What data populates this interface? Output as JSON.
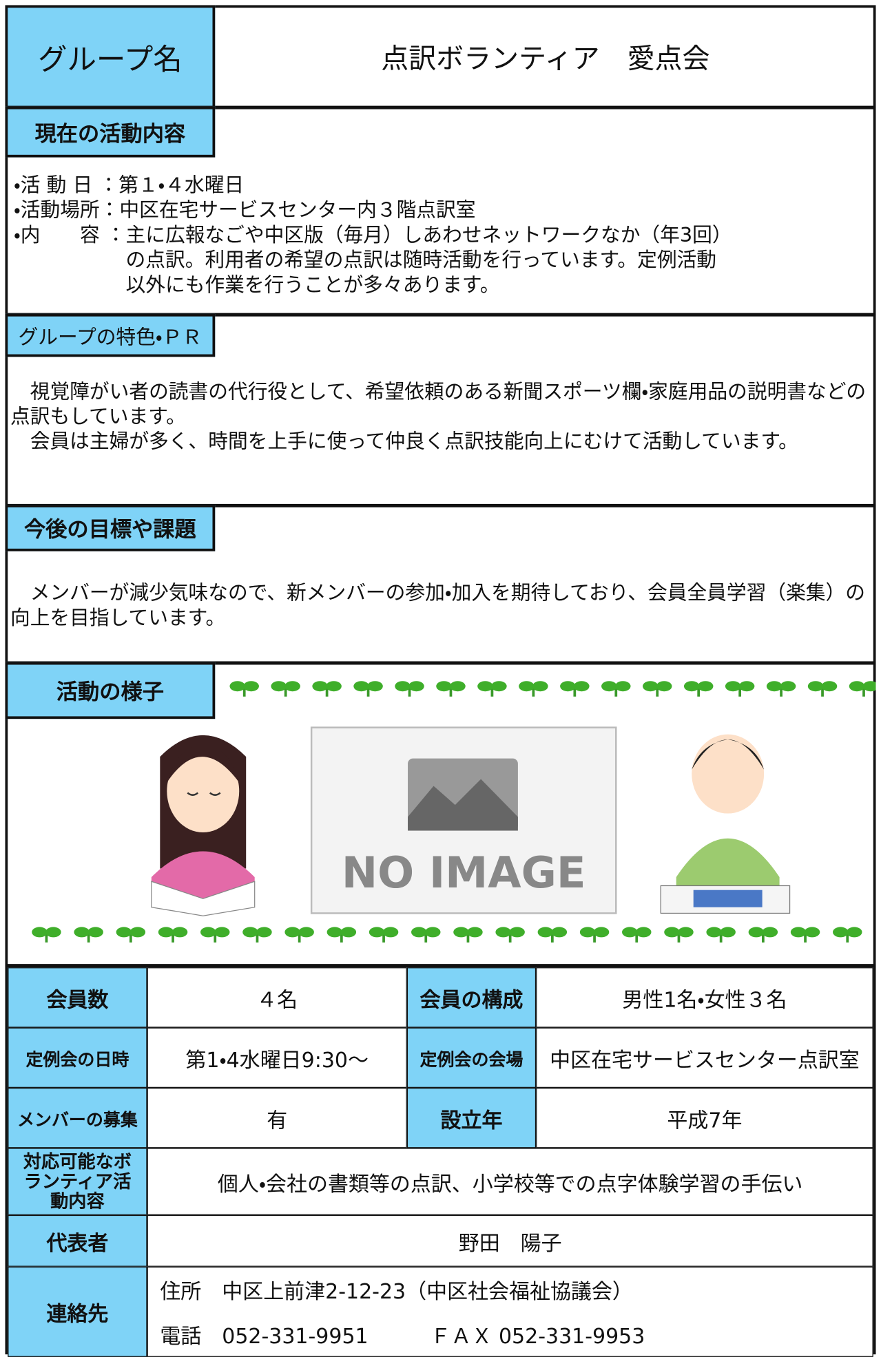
{
  "header": {
    "label": "グループ名",
    "name": "点訳ボランティア　愛点会"
  },
  "activity": {
    "title": "現在の活動内容",
    "items": [
      {
        "label": "・活 動 日 ：",
        "lines": [
          "第１・４水曜日"
        ]
      },
      {
        "label": "・活動場所：",
        "lines": [
          "中区在宅サービスセンター内３階点訳室"
        ]
      },
      {
        "label": "・内　　容 ：",
        "lines": [
          "主に広報なごや中区版（毎月）しあわせネットワークなか（年3回）",
          "の点訳。利用者の希望の点訳は随時活動を行っています。定例活動",
          "以外にも作業を行うことが多々あります。"
        ]
      }
    ]
  },
  "pr": {
    "title": "グループの特色・ＰＲ",
    "paragraphs": [
      "　視覚障がい者の読書の代行役として、希望依頼のある新聞スポーツ欄・家庭用品の説明書などの点訳もしています。",
      "　会員は主婦が多く、時間を上手に使って仲良く点訳技能向上にむけて活動しています。"
    ]
  },
  "goals": {
    "title": "今後の目標や課題",
    "paragraphs": [
      "　メンバーが減少気味なので、新メンバーの参加・加入を期待しており、会員全員学習（楽集）の向上を目指しています。"
    ]
  },
  "scene": {
    "title": "活動の様子",
    "placeholder": "NO IMAGE"
  },
  "table": {
    "rows": [
      [
        "会員数",
        "４名",
        "会員の構成",
        "男性1名・女性３名"
      ],
      [
        "定例会の日時",
        "第1・4水曜日9:30～",
        "定例会の会場",
        "中区在宅サービスセンター点訳室"
      ],
      [
        "メンバーの募集",
        "有",
        "設立年",
        "平成7年"
      ],
      [
        "対応可能なボランティア活動内容",
        "個人・会社の書類等の点訳、小学校等での点字体験学習の手伝い"
      ],
      [
        "代表者",
        "野田　陽子"
      ],
      [
        "連絡先",
        "住所　中区上前津2-12-23（中区社会福祉協議会）",
        "電話　052-331-9951　　　ＦＡＸ 052-331-9953"
      ]
    ]
  }
}
